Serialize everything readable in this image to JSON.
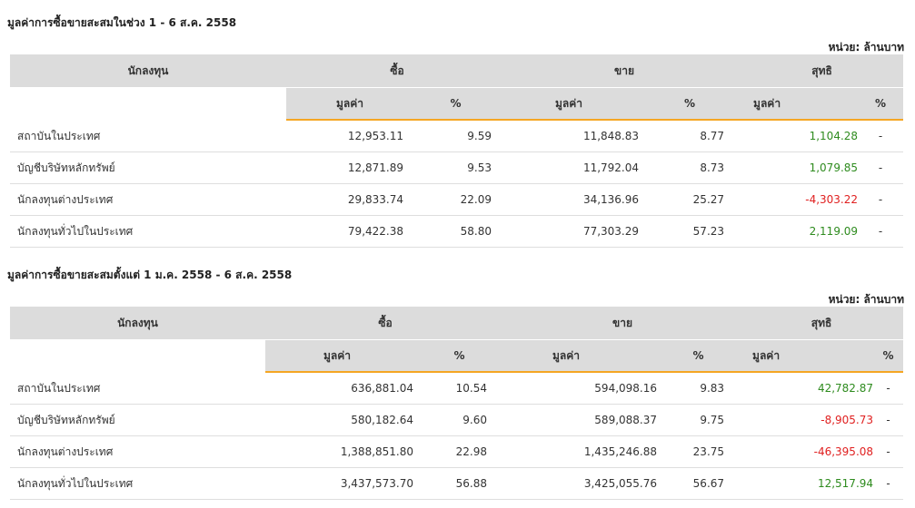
{
  "headers": {
    "investor": "นักลงทุน",
    "buy": "ซื้อ",
    "sell": "ขาย",
    "net": "สุทธิ",
    "value": "มูลค่า",
    "percent": "%"
  },
  "tables": [
    {
      "title": "มูลค่าการซื้อขายสะสมในช่วง 1 - 6 ส.ค. 2558",
      "unit": "หน่วย: ล้านบาท",
      "rows": [
        {
          "investor": "สถาบันในประเทศ",
          "buy_value": "12,953.11",
          "buy_pct": "9.59",
          "sell_value": "11,848.83",
          "sell_pct": "8.77",
          "net_value": "1,104.28",
          "net_sign": "pos",
          "net_pct": "-"
        },
        {
          "investor": "บัญชีบริษัทหลักทรัพย์",
          "buy_value": "12,871.89",
          "buy_pct": "9.53",
          "sell_value": "11,792.04",
          "sell_pct": "8.73",
          "net_value": "1,079.85",
          "net_sign": "pos",
          "net_pct": "-"
        },
        {
          "investor": "นักลงทุนต่างประเทศ",
          "buy_value": "29,833.74",
          "buy_pct": "22.09",
          "sell_value": "34,136.96",
          "sell_pct": "25.27",
          "net_value": "-4,303.22",
          "net_sign": "neg",
          "net_pct": "-"
        },
        {
          "investor": "นักลงทุนทั่วไปในประเทศ",
          "buy_value": "79,422.38",
          "buy_pct": "58.80",
          "sell_value": "77,303.29",
          "sell_pct": "57.23",
          "net_value": "2,119.09",
          "net_sign": "pos",
          "net_pct": "-"
        }
      ]
    },
    {
      "title": "มูลค่าการซื้อขายสะสมตั้งแต่ 1 ม.ค. 2558 - 6 ส.ค. 2558",
      "unit": "หน่วย: ล้านบาท",
      "rows": [
        {
          "investor": "สถาบันในประเทศ",
          "buy_value": "636,881.04",
          "buy_pct": "10.54",
          "sell_value": "594,098.16",
          "sell_pct": "9.83",
          "net_value": "42,782.87",
          "net_sign": "pos",
          "net_pct": "-"
        },
        {
          "investor": "บัญชีบริษัทหลักทรัพย์",
          "buy_value": "580,182.64",
          "buy_pct": "9.60",
          "sell_value": "589,088.37",
          "sell_pct": "9.75",
          "net_value": "-8,905.73",
          "net_sign": "neg",
          "net_pct": "-"
        },
        {
          "investor": "นักลงทุนต่างประเทศ",
          "buy_value": "1,388,851.80",
          "buy_pct": "22.98",
          "sell_value": "1,435,246.88",
          "sell_pct": "23.75",
          "net_value": "-46,395.08",
          "net_sign": "neg",
          "net_pct": "-"
        },
        {
          "investor": "นักลงทุนทั่วไปในประเทศ",
          "buy_value": "3,437,573.70",
          "buy_pct": "56.88",
          "sell_value": "3,425,055.76",
          "sell_pct": "56.67",
          "net_value": "12,517.94",
          "net_sign": "pos",
          "net_pct": "-"
        }
      ]
    }
  ],
  "colors": {
    "positive": "#2e8b1e",
    "negative": "#e02020",
    "header_bg": "#dcdcdc",
    "accent_border": "#f5a623"
  }
}
